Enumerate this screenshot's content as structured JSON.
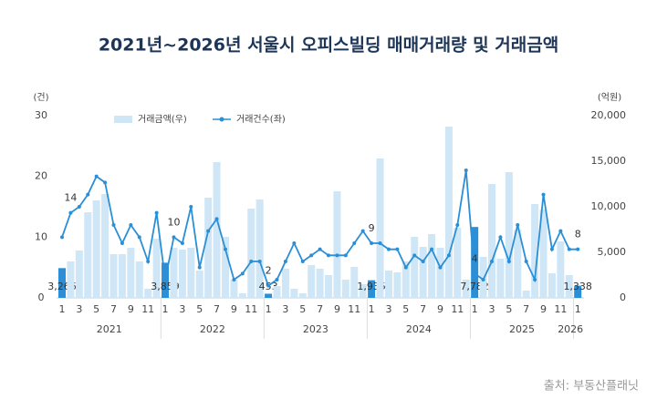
{
  "chart_data": {
    "type": "bar-line",
    "title": "2021년~2026년 서울시 오피스빌딩 매매거래량 및 거래금액",
    "ylabel": "(건)",
    "y2label": "(억원)",
    "source": "출처: 부동산플래닛",
    "categories": [
      "1",
      null,
      "3",
      null,
      "5",
      null,
      "7",
      null,
      "9",
      null,
      "11",
      null,
      "1",
      null,
      "3",
      null,
      "5",
      null,
      "7",
      null,
      "9",
      null,
      "11",
      null,
      "1",
      null,
      "3",
      null,
      "5",
      null,
      "7",
      null,
      "9",
      null,
      "11",
      null,
      "1",
      null,
      "3",
      null,
      "5",
      null,
      "7",
      null,
      "9",
      null,
      "11",
      null,
      "1",
      null,
      "3",
      null,
      "5",
      null,
      "7",
      null,
      "9",
      null,
      "11",
      null,
      "1"
    ],
    "years": [
      "2021",
      "2022",
      "2023",
      "2024",
      "2025",
      "2026"
    ],
    "ylim": [
      0,
      30
    ],
    "yticks": [
      0,
      10,
      20,
      30
    ],
    "y2lim": [
      0,
      20000
    ],
    "y2ticks": [
      0,
      {
        "value": 5000,
        "label": "5,000"
      },
      {
        "value": 10000,
        "label": "10,000"
      },
      {
        "value": 15000,
        "label": "15,000"
      },
      {
        "value": 20000,
        "label": "20,000"
      }
    ],
    "series": [
      {
        "name": "거래금액(우)",
        "kind": "bar",
        "axis": "y2",
        "color": "#cfe6f7",
        "highlight_color": "#2a8fd6",
        "values": [
          3266,
          4000,
          5200,
          9400,
          10700,
          11400,
          4800,
          4800,
          5500,
          4000,
          1000,
          6500,
          3859,
          5500,
          5300,
          5500,
          3000,
          11000,
          14900,
          6700,
          2000,
          500,
          9800,
          10800,
          453,
          1300,
          3200,
          1000,
          500,
          3600,
          3200,
          2500,
          11700,
          2000,
          3400,
          1500,
          1935,
          15300,
          3000,
          2800,
          4000,
          6700,
          5600,
          7000,
          5500,
          18800,
          7700,
          2000,
          7782,
          4500,
          12500,
          4300,
          13800,
          7500,
          800,
          10300,
          9700,
          2700,
          6200,
          2500,
          1338
        ],
        "value_labels": [
          "3,266",
          null,
          null,
          null,
          null,
          null,
          null,
          null,
          null,
          null,
          null,
          null,
          "3,859",
          null,
          null,
          null,
          null,
          null,
          null,
          null,
          null,
          null,
          null,
          null,
          "453",
          null,
          null,
          null,
          null,
          null,
          null,
          null,
          null,
          null,
          null,
          null,
          "1,935",
          null,
          null,
          null,
          null,
          null,
          null,
          null,
          null,
          null,
          null,
          null,
          "7,782",
          null,
          null,
          null,
          null,
          null,
          null,
          null,
          null,
          null,
          null,
          null,
          "1,338"
        ]
      },
      {
        "name": "거래건수(좌)",
        "kind": "line",
        "axis": "y",
        "color": "#2a8fd6",
        "values": [
          10,
          14,
          15,
          17,
          20,
          19,
          12,
          9,
          12,
          10,
          6,
          14,
          3,
          10,
          9,
          15,
          5,
          11,
          13,
          8,
          3,
          4,
          6,
          6,
          2,
          3,
          6,
          9,
          6,
          7,
          8,
          7,
          7,
          7,
          9,
          11,
          9,
          9,
          8,
          8,
          5,
          7,
          6,
          8,
          5,
          7,
          12,
          21,
          4,
          3,
          6,
          10,
          6,
          12,
          6,
          3,
          17,
          8,
          11,
          8,
          8
        ],
        "value_labels": [
          null,
          "14",
          null,
          null,
          null,
          null,
          null,
          null,
          null,
          null,
          null,
          null,
          null,
          "10",
          null,
          null,
          null,
          null,
          null,
          null,
          null,
          null,
          null,
          null,
          "2",
          null,
          null,
          null,
          null,
          null,
          null,
          null,
          null,
          null,
          null,
          null,
          "9",
          null,
          null,
          null,
          null,
          null,
          null,
          null,
          null,
          null,
          null,
          null,
          "4",
          null,
          null,
          null,
          null,
          null,
          null,
          null,
          null,
          null,
          null,
          null,
          "8"
        ]
      }
    ]
  }
}
